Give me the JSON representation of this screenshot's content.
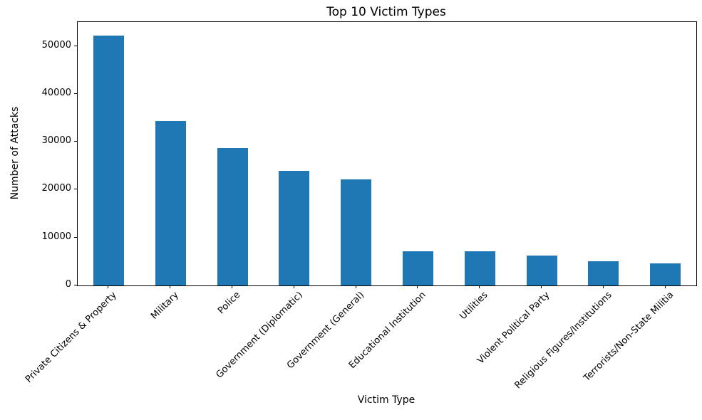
{
  "chart_data": {
    "type": "bar",
    "title": "Top 10 Victim Types",
    "xlabel": "Victim Type",
    "ylabel": "Number of Attacks",
    "categories": [
      "Private Citizens & Property",
      "Military",
      "Police",
      "Government (Diplomatic)",
      "Government (General)",
      "Educational Institution",
      "Utilities",
      "Violent Political Party",
      "Religious Figures/Institutions",
      "Terrorists/Non-State Militia"
    ],
    "values": [
      52200,
      34300,
      28700,
      24000,
      22200,
      7200,
      7100,
      6250,
      5100,
      4600
    ],
    "yticks": [
      0,
      10000,
      20000,
      30000,
      40000,
      50000
    ],
    "ylim": [
      0,
      55000
    ],
    "x_tick_rotation": 45,
    "bar_color": "#1f77b4",
    "background_color": "#ffffff",
    "axis_color": "#000000",
    "grid": false,
    "legend": null
  }
}
